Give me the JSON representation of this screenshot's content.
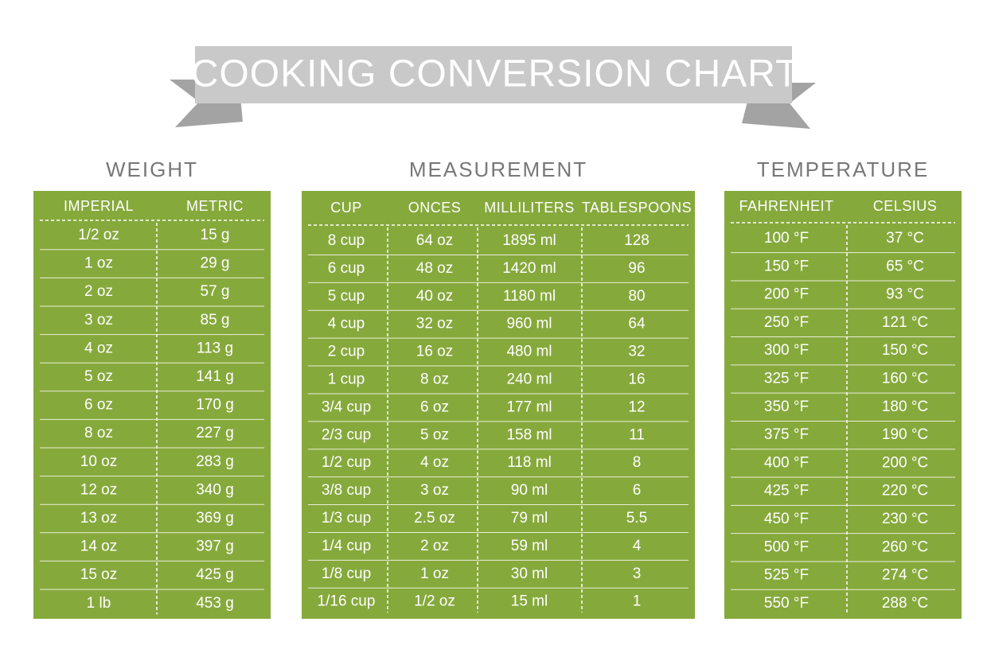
{
  "title": "COOKING CONVERSION CHART",
  "sections": [
    {
      "title": "WEIGHT",
      "headers": [
        "IMPERIAL",
        "METRIC"
      ],
      "rows": [
        [
          "1/2 oz",
          "15 g"
        ],
        [
          "1 oz",
          "29 g"
        ],
        [
          "2 oz",
          "57 g"
        ],
        [
          "3 oz",
          "85 g"
        ],
        [
          "4 oz",
          "113 g"
        ],
        [
          "5 oz",
          "141 g"
        ],
        [
          "6 oz",
          "170 g"
        ],
        [
          "8 oz",
          "227 g"
        ],
        [
          "10 oz",
          "283 g"
        ],
        [
          "12 oz",
          "340 g"
        ],
        [
          "13 oz",
          "369 g"
        ],
        [
          "14 oz",
          "397 g"
        ],
        [
          "15 oz",
          "425 g"
        ],
        [
          "1 lb",
          "453 g"
        ]
      ]
    },
    {
      "title": "MEASUREMENT",
      "headers": [
        "CUP",
        "ONCES",
        "MILLILITERS",
        "TABLESPOONS"
      ],
      "rows": [
        [
          "8 cup",
          "64 oz",
          "1895 ml",
          "128"
        ],
        [
          "6 cup",
          "48 oz",
          "1420 ml",
          "96"
        ],
        [
          "5 cup",
          "40 oz",
          "1180 ml",
          "80"
        ],
        [
          "4 cup",
          "32 oz",
          "960 ml",
          "64"
        ],
        [
          "2 cup",
          "16 oz",
          "480 ml",
          "32"
        ],
        [
          "1 cup",
          "8 oz",
          "240 ml",
          "16"
        ],
        [
          "3/4 cup",
          "6 oz",
          "177 ml",
          "12"
        ],
        [
          "2/3 cup",
          "5 oz",
          "158 ml",
          "11"
        ],
        [
          "1/2 cup",
          "4 oz",
          "118 ml",
          "8"
        ],
        [
          "3/8 cup",
          "3 oz",
          "90 ml",
          "6"
        ],
        [
          "1/3 cup",
          "2.5 oz",
          "79 ml",
          "5.5"
        ],
        [
          "1/4 cup",
          "2 oz",
          "59 ml",
          "4"
        ],
        [
          "1/8 cup",
          "1 oz",
          "30 ml",
          "3"
        ],
        [
          "1/16 cup",
          "1/2 oz",
          "15 ml",
          "1"
        ]
      ]
    },
    {
      "title": "TEMPERATURE",
      "headers": [
        "FAHRENHEIT",
        "CELSIUS"
      ],
      "rows": [
        [
          "100 °F",
          "37 °C"
        ],
        [
          "150 °F",
          "65 °C"
        ],
        [
          "200 °F",
          "93 °C"
        ],
        [
          "250 °F",
          "121 °C"
        ],
        [
          "300 °F",
          "150 °C"
        ],
        [
          "325 °F",
          "160 °C"
        ],
        [
          "350 °F",
          "180 °C"
        ],
        [
          "375 °F",
          "190 °C"
        ],
        [
          "400 °F",
          "200 °C"
        ],
        [
          "425 °F",
          "220 °C"
        ],
        [
          "450 °F",
          "230 °C"
        ],
        [
          "500 °F",
          "260 °C"
        ],
        [
          "525 °F",
          "274 °C"
        ],
        [
          "550 °F",
          "288 °C"
        ]
      ]
    }
  ]
}
